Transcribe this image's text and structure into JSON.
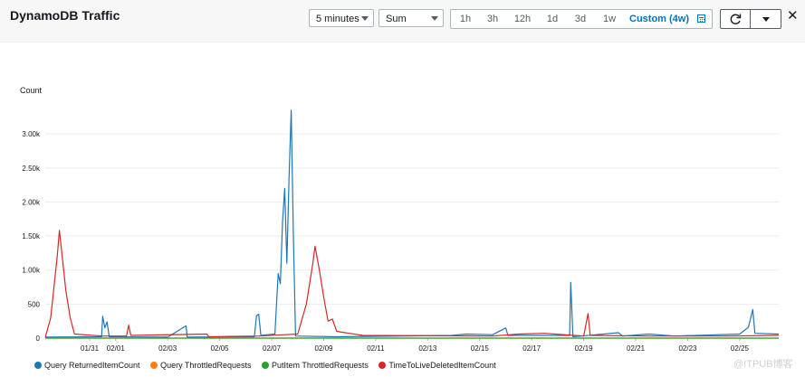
{
  "header": {
    "title": "DynamoDB Traffic",
    "period": "5 minutes",
    "statistic": "Sum",
    "time_ranges": [
      "1h",
      "3h",
      "12h",
      "1d",
      "3d",
      "1w",
      "Custom (4w)"
    ],
    "active_range": "Custom (4w)"
  },
  "icons": {
    "calendar": "calendar-icon",
    "refresh": "refresh-icon",
    "menu": "chevron-down-icon",
    "close": "close-icon"
  },
  "watermark": "@ITPUB博客",
  "chart_data": {
    "type": "line",
    "ylabel": "Count",
    "ylim": [
      0,
      3400
    ],
    "yticks": [
      0,
      500,
      1000,
      1500,
      2000,
      2500,
      3000
    ],
    "ytick_labels": [
      "0",
      "500",
      "1.00k",
      "1.50k",
      "2.00k",
      "2.50k",
      "3.00k"
    ],
    "xlim": [
      "01/29 19:00",
      "02/26 24:00"
    ],
    "xticks": [
      "01/31",
      "02/01",
      "02/03",
      "02/05",
      "02/07",
      "02/09",
      "02/11",
      "02/13",
      "02/15",
      "02/17",
      "02/19",
      "02/21",
      "02/23",
      "02/25"
    ],
    "grid": true,
    "legend_position": "bottom",
    "series": [
      {
        "name": "Query ReturnedItemCount",
        "color": "#1f77b4",
        "points": [
          [
            "01/29 19:00",
            15
          ],
          [
            "01/31 23:00",
            20
          ],
          [
            "02/01 00:00",
            320
          ],
          [
            "02/01 02:00",
            150
          ],
          [
            "02/01 04:00",
            240
          ],
          [
            "02/01 06:00",
            20
          ],
          [
            "02/03 12:00",
            15
          ],
          [
            "02/04 05:00",
            180
          ],
          [
            "02/04 06:00",
            15
          ],
          [
            "02/06 20:00",
            20
          ],
          [
            "02/06 22:00",
            330
          ],
          [
            "02/07 00:00",
            350
          ],
          [
            "02/07 02:00",
            40
          ],
          [
            "02/07 15:00",
            60
          ],
          [
            "02/07 18:00",
            950
          ],
          [
            "02/07 20:00",
            800
          ],
          [
            "02/07 22:00",
            1700
          ],
          [
            "02/08 00:00",
            2200
          ],
          [
            "02/08 02:00",
            1100
          ],
          [
            "02/08 04:00",
            2350
          ],
          [
            "02/08 06:00",
            3350
          ],
          [
            "02/08 08:00",
            1500
          ],
          [
            "02/08 10:00",
            30
          ],
          [
            "02/10 00:00",
            20
          ],
          [
            "02/14 10:00",
            40
          ],
          [
            "02/15 00:00",
            60
          ],
          [
            "02/16 00:00",
            50
          ],
          [
            "02/16 12:00",
            150
          ],
          [
            "02/16 14:00",
            40
          ],
          [
            "02/18 23:00",
            40
          ],
          [
            "02/19 00:00",
            820
          ],
          [
            "02/19 02:00",
            20
          ],
          [
            "02/20 20:00",
            80
          ],
          [
            "02/21 00:00",
            30
          ],
          [
            "02/22 00:00",
            60
          ],
          [
            "02/23 00:00",
            30
          ],
          [
            "02/25 12:00",
            60
          ],
          [
            "02/25 20:00",
            160
          ],
          [
            "02/26 00:00",
            420
          ],
          [
            "02/26 02:00",
            70
          ],
          [
            "02/26 24:00",
            60
          ]
        ]
      },
      {
        "name": "Query ThrottledRequests",
        "color": "#ff7f0e",
        "points": [
          [
            "01/29 19:00",
            0
          ],
          [
            "02/26 24:00",
            0
          ]
        ]
      },
      {
        "name": "PutItem ThrottledRequests",
        "color": "#2ca02c",
        "points": [
          [
            "01/29 19:00",
            0
          ],
          [
            "02/26 24:00",
            0
          ]
        ]
      },
      {
        "name": "TimeToLiveDeletedItemCount",
        "color": "#d62728",
        "points": [
          [
            "01/29 19:00",
            10
          ],
          [
            "01/30 00:00",
            300
          ],
          [
            "01/30 06:00",
            1200
          ],
          [
            "01/30 08:00",
            1580
          ],
          [
            "01/30 10:00",
            1300
          ],
          [
            "01/30 14:00",
            700
          ],
          [
            "01/30 18:00",
            300
          ],
          [
            "01/30 22:00",
            60
          ],
          [
            "02/01 00:00",
            30
          ],
          [
            "02/01 22:00",
            30
          ],
          [
            "02/02 00:00",
            190
          ],
          [
            "02/02 02:00",
            40
          ],
          [
            "02/05 00:00",
            60
          ],
          [
            "02/05 02:00",
            20
          ],
          [
            "02/07 00:00",
            30
          ],
          [
            "02/08 00:00",
            50
          ],
          [
            "02/08 12:00",
            60
          ],
          [
            "02/08 20:00",
            500
          ],
          [
            "02/09 02:00",
            1100
          ],
          [
            "02/09 04:00",
            1350
          ],
          [
            "02/09 08:00",
            1000
          ],
          [
            "02/09 12:00",
            600
          ],
          [
            "02/09 16:00",
            250
          ],
          [
            "02/09 20:00",
            280
          ],
          [
            "02/10 00:00",
            100
          ],
          [
            "02/11 00:00",
            40
          ],
          [
            "02/16 00:00",
            30
          ],
          [
            "02/17 00:00",
            60
          ],
          [
            "02/18 00:00",
            70
          ],
          [
            "02/19 12:00",
            30
          ],
          [
            "02/19 16:00",
            360
          ],
          [
            "02/19 18:00",
            40
          ],
          [
            "02/22 00:00",
            30
          ],
          [
            "02/25 00:00",
            30
          ],
          [
            "02/26 24:00",
            40
          ]
        ]
      }
    ]
  }
}
